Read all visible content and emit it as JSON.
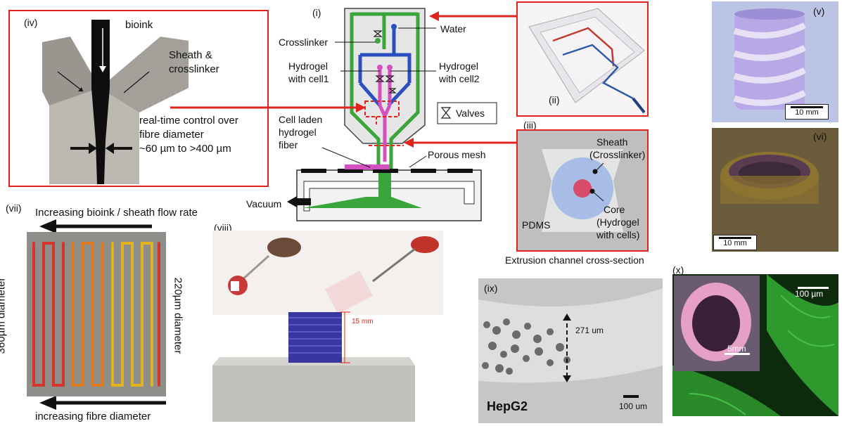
{
  "panels": {
    "i": "(i)",
    "ii": "(ii)",
    "iii": "(iii)",
    "iv": "(iv)",
    "v": "(v)",
    "vi": "(vi)",
    "vii": "(vii)",
    "viii": "(viii)",
    "ix": "(ix)",
    "x": "(x)"
  },
  "panel_iv": {
    "bioink": "bioink",
    "sheath_line1": "Sheath &",
    "sheath_line2": "crosslinker",
    "control_line1": "real-time control over",
    "control_line2": "fibre diameter",
    "control_line3": "~60 µm to >400 µm"
  },
  "panel_i": {
    "crosslinker": "Crosslinker",
    "water": "Water",
    "hydrogel1_line1": "Hydrogel",
    "hydrogel1_line2": "with cell1",
    "hydrogel2_line1": "Hydrogel",
    "hydrogel2_line2": "with cell2",
    "valves": "Valves",
    "fiber_line1": "Cell laden",
    "fiber_line2": "hydrogel",
    "fiber_line3": "fiber",
    "porous_mesh": "Porous mesh",
    "vacuum": "Vacuum"
  },
  "panel_iii": {
    "sheath_line1": "Sheath",
    "sheath_line2": "(Crosslinker)",
    "core_line1": "Core",
    "core_line2": "(Hydrogel",
    "core_line3": "with cells)",
    "pdms": "PDMS",
    "caption": "Extrusion channel cross-section"
  },
  "panel_v": {
    "scale": "10 mm"
  },
  "panel_vi": {
    "scale": "10 mm"
  },
  "panel_vii": {
    "top_arrow": "Increasing bioink / sheath flow rate",
    "bottom_arrow": "increasing fibre diameter",
    "left_diameter": "360µm diameter",
    "right_diameter": "220µm diameter"
  },
  "panel_viii": {
    "height": "15 mm"
  },
  "panel_ix": {
    "width": "271 um",
    "cell": "HepG2",
    "scale": "100 um"
  },
  "panel_x": {
    "scale_main": "100 µm",
    "scale_inset": "5mm"
  },
  "colors": {
    "arrow_red": "#e0241b",
    "channel_green": "#3aa53a",
    "channel_blue": "#2b4fbf",
    "magenta": "#d44fbf",
    "panel_border": "#e0241b"
  }
}
